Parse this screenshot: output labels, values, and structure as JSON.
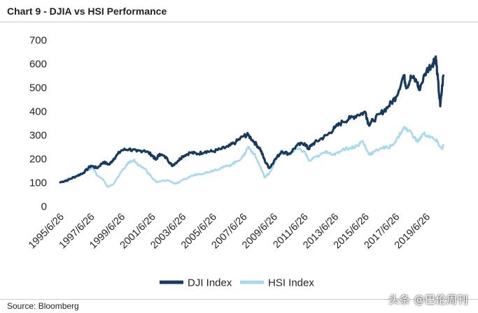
{
  "header": {
    "title": "Chart 9 - DJIA vs HSI Performance"
  },
  "footer": {
    "source": "Source: Bloomberg",
    "watermark": "头条 @巴伦周刊"
  },
  "colors": {
    "dji": "#173a5e",
    "hsi": "#a8d8ee",
    "text": "#222222",
    "rule": "#c8c8c8"
  },
  "chart_data": {
    "type": "line",
    "title": "Chart 9 - DJIA vs HSI Performance",
    "xlabel": "",
    "ylabel": "",
    "ylim": [
      0,
      700
    ],
    "yticks": [
      0,
      100,
      200,
      300,
      400,
      500,
      600,
      700
    ],
    "xlim": [
      1995.48,
      2020.9
    ],
    "xticks": [
      "1995/6/26",
      "1997/6/26",
      "1999/6/26",
      "2001/6/26",
      "2003/6/26",
      "2005/6/26",
      "2007/6/26",
      "2009/6/26",
      "2011/6/26",
      "2013/6/26",
      "2015/6/26",
      "2017/6/26",
      "2019/6/26"
    ],
    "grid": false,
    "legend": "bottom-center",
    "series": [
      {
        "name": "DJI Index",
        "x": [
          1995.48,
          1996.0,
          1996.5,
          1997.0,
          1997.5,
          1997.9,
          1998.3,
          1998.7,
          1999.0,
          1999.5,
          2000.0,
          2000.5,
          2001.0,
          2001.5,
          2001.75,
          2002.0,
          2002.5,
          2002.8,
          2003.2,
          2003.5,
          2004.0,
          2004.5,
          2005.0,
          2005.5,
          2006.0,
          2006.5,
          2007.0,
          2007.5,
          2007.8,
          2008.2,
          2008.6,
          2008.9,
          2009.2,
          2009.5,
          2010.0,
          2010.5,
          2011.0,
          2011.5,
          2011.75,
          2012.0,
          2012.5,
          2013.0,
          2013.5,
          2014.0,
          2014.5,
          2015.0,
          2015.5,
          2015.7,
          2016.0,
          2016.5,
          2017.0,
          2017.5,
          2018.0,
          2018.2,
          2018.5,
          2018.9,
          2019.0,
          2019.5,
          2019.9,
          2020.1,
          2020.2,
          2020.4,
          2020.6
        ],
        "values": [
          100,
          110,
          125,
          140,
          170,
          160,
          185,
          175,
          200,
          235,
          240,
          230,
          235,
          215,
          195,
          220,
          200,
          170,
          190,
          210,
          225,
          220,
          230,
          230,
          240,
          250,
          270,
          295,
          300,
          270,
          240,
          190,
          160,
          190,
          230,
          220,
          255,
          265,
          240,
          260,
          280,
          300,
          330,
          355,
          370,
          385,
          395,
          345,
          360,
          390,
          420,
          460,
          550,
          500,
          545,
          520,
          490,
          570,
          600,
          630,
          560,
          420,
          550
        ]
      },
      {
        "name": "HSI Index",
        "x": [
          1995.48,
          1996.0,
          1996.5,
          1997.0,
          1997.6,
          1997.9,
          1998.3,
          1998.6,
          1999.0,
          1999.5,
          2000.0,
          2000.3,
          2000.6,
          2001.0,
          2001.5,
          2001.8,
          2002.5,
          2003.0,
          2003.3,
          2004.0,
          2004.5,
          2005.0,
          2005.5,
          2006.0,
          2006.5,
          2007.0,
          2007.5,
          2007.8,
          2008.2,
          2008.6,
          2008.9,
          2009.2,
          2009.6,
          2010.0,
          2010.5,
          2011.0,
          2011.5,
          2011.8,
          2012.5,
          2013.0,
          2013.5,
          2014.0,
          2014.5,
          2015.0,
          2015.3,
          2015.7,
          2016.0,
          2016.5,
          2017.0,
          2017.5,
          2018.0,
          2018.5,
          2018.9,
          2019.3,
          2019.8,
          2020.2,
          2020.5,
          2020.6
        ],
        "values": [
          100,
          115,
          125,
          140,
          165,
          130,
          110,
          80,
          95,
          145,
          185,
          195,
          170,
          160,
          120,
          100,
          110,
          95,
          100,
          125,
          135,
          140,
          150,
          160,
          170,
          185,
          210,
          250,
          220,
          165,
          120,
          140,
          190,
          235,
          215,
          240,
          230,
          190,
          215,
          230,
          215,
          240,
          245,
          255,
          275,
          220,
          225,
          245,
          245,
          275,
          330,
          310,
          270,
          305,
          290,
          270,
          240,
          255
        ]
      }
    ]
  }
}
